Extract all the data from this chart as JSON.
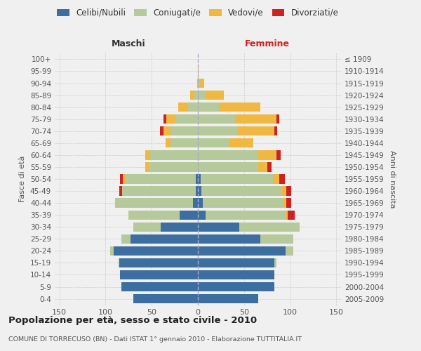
{
  "age_groups": [
    "0-4",
    "5-9",
    "10-14",
    "15-19",
    "20-24",
    "25-29",
    "30-34",
    "35-39",
    "40-44",
    "45-49",
    "50-54",
    "55-59",
    "60-64",
    "65-69",
    "70-74",
    "75-79",
    "80-84",
    "85-89",
    "90-94",
    "95-99",
    "100+"
  ],
  "birth_years": [
    "2005-2009",
    "2000-2004",
    "1995-1999",
    "1990-1994",
    "1985-1989",
    "1980-1984",
    "1975-1979",
    "1970-1974",
    "1965-1969",
    "1960-1964",
    "1955-1959",
    "1950-1954",
    "1945-1949",
    "1940-1944",
    "1935-1939",
    "1930-1934",
    "1925-1929",
    "1920-1924",
    "1915-1919",
    "1910-1914",
    "≤ 1909"
  ],
  "males": {
    "celibi": [
      70,
      83,
      84,
      85,
      91,
      73,
      40,
      20,
      5,
      2,
      2,
      0,
      0,
      0,
      0,
      0,
      0,
      0,
      0,
      0,
      0
    ],
    "coniugati": [
      0,
      0,
      0,
      1,
      4,
      10,
      30,
      55,
      85,
      80,
      77,
      53,
      52,
      30,
      30,
      24,
      11,
      4,
      1,
      0,
      0
    ],
    "vedovi": [
      0,
      0,
      0,
      0,
      0,
      0,
      0,
      0,
      0,
      0,
      2,
      4,
      5,
      5,
      7,
      10,
      10,
      4,
      0,
      0,
      0
    ],
    "divorziati": [
      0,
      0,
      0,
      0,
      0,
      0,
      0,
      0,
      0,
      3,
      3,
      0,
      0,
      0,
      4,
      3,
      0,
      0,
      0,
      0,
      0
    ]
  },
  "females": {
    "nubili": [
      65,
      83,
      83,
      83,
      95,
      68,
      45,
      8,
      5,
      4,
      3,
      0,
      0,
      0,
      0,
      0,
      0,
      0,
      0,
      0,
      0
    ],
    "coniugate": [
      0,
      0,
      0,
      2,
      8,
      35,
      65,
      87,
      88,
      87,
      78,
      65,
      65,
      35,
      43,
      40,
      23,
      8,
      2,
      0,
      0
    ],
    "vedove": [
      0,
      0,
      0,
      0,
      0,
      0,
      0,
      2,
      3,
      5,
      7,
      10,
      20,
      25,
      40,
      45,
      45,
      20,
      5,
      1,
      0
    ],
    "divorziate": [
      0,
      0,
      0,
      0,
      0,
      0,
      0,
      8,
      5,
      5,
      6,
      5,
      5,
      0,
      3,
      3,
      0,
      0,
      0,
      0,
      0
    ]
  },
  "colors": {
    "celibi": "#3d6ea0",
    "coniugati": "#b5c99a",
    "vedovi": "#f0b840",
    "divorziati": "#cc2222"
  },
  "xlim": 155,
  "title": "Popolazione per età, sesso e stato civile - 2010",
  "subtitle": "COMUNE DI TORRECUSO (BN) - Dati ISTAT 1° gennaio 2010 - Elaborazione TUTTITALIA.IT",
  "ylabel_left": "Fasce di età",
  "ylabel_right": "Anni di nascita",
  "xlabel_left": "Maschi",
  "xlabel_right": "Femmine",
  "bg_color": "#f0f0f0"
}
